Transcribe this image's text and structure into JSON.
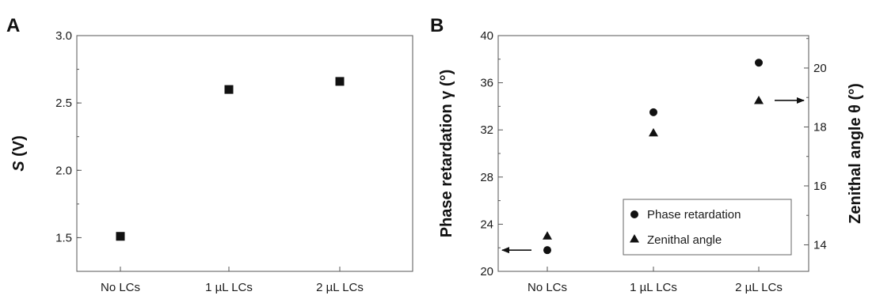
{
  "chart_data": [
    {
      "panel": "A",
      "type": "scatter",
      "title": "",
      "xlabel": "",
      "ylabel_italic": "S",
      "ylabel_rest": " (V)",
      "categories": [
        "No LCs",
        "1 µL LCs",
        "2 µL LCs"
      ],
      "ylim": [
        1.25,
        3.0
      ],
      "yticks": [
        "1.5",
        "2.0",
        "2.5",
        "3.0"
      ],
      "grid": false,
      "series": [
        {
          "marker": "square",
          "values": [
            1.51,
            2.6,
            2.66
          ]
        }
      ]
    },
    {
      "panel": "B",
      "type": "scatter",
      "title": "",
      "xlabel": "",
      "ylabel": "Phase retardation γ (°)",
      "y2label": "Zenithal angle θ (°)",
      "categories": [
        "No LCs",
        "1 µL LCs",
        "2 µL LCs"
      ],
      "ylim": [
        20,
        40
      ],
      "yticks": [
        "20",
        "24",
        "28",
        "32",
        "36",
        "40"
      ],
      "y2lim": [
        13.1,
        21.1
      ],
      "y2ticks": [
        "14",
        "16",
        "18",
        "20"
      ],
      "grid": false,
      "legend_position": "bottom-right",
      "series": [
        {
          "name": "Phase retardation",
          "marker": "circle",
          "axis": "left",
          "values": [
            21.8,
            33.5,
            37.7
          ]
        },
        {
          "name": "Zenithal angle",
          "marker": "triangle",
          "axis": "right",
          "values": [
            14.3,
            17.8,
            18.9
          ]
        }
      ],
      "arrows": [
        {
          "points_to": "left",
          "category_index": 0,
          "value": 21.8
        },
        {
          "points_to": "right",
          "category_index": 2,
          "value": 18.9
        }
      ]
    }
  ]
}
